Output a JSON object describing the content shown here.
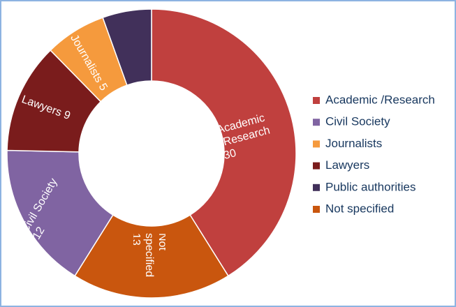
{
  "chart_data": {
    "type": "donut",
    "categories": [
      "Academic /Research",
      "Civil Society",
      "Journalists",
      "Lawyers",
      "Public authorities",
      "Not specified"
    ],
    "values": [
      30,
      12,
      5,
      9,
      4,
      13
    ],
    "colors": [
      "#c0403e",
      "#8064a2",
      "#f59a3d",
      "#7a1c1c",
      "#41305a",
      "#c9560e"
    ],
    "legend": "right"
  }
}
